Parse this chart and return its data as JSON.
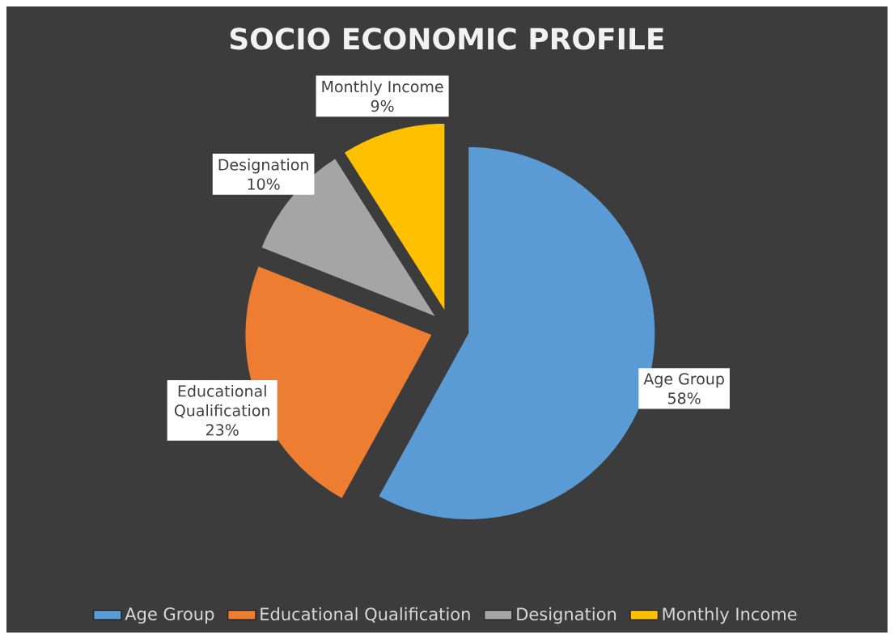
{
  "chart_data": {
    "type": "pie",
    "title": "SOCIO ECONOMIC PROFILE",
    "categories": [
      "Age Group",
      "Educational Qualification",
      "Designation",
      "Monthly Income"
    ],
    "values": [
      58,
      23,
      10,
      9
    ],
    "value_labels": [
      "58%",
      "23%",
      "10%",
      "9%"
    ],
    "colors": [
      "#5b9bd5",
      "#ed7d31",
      "#a5a5a5",
      "#ffc000"
    ],
    "legend": "bottom"
  }
}
